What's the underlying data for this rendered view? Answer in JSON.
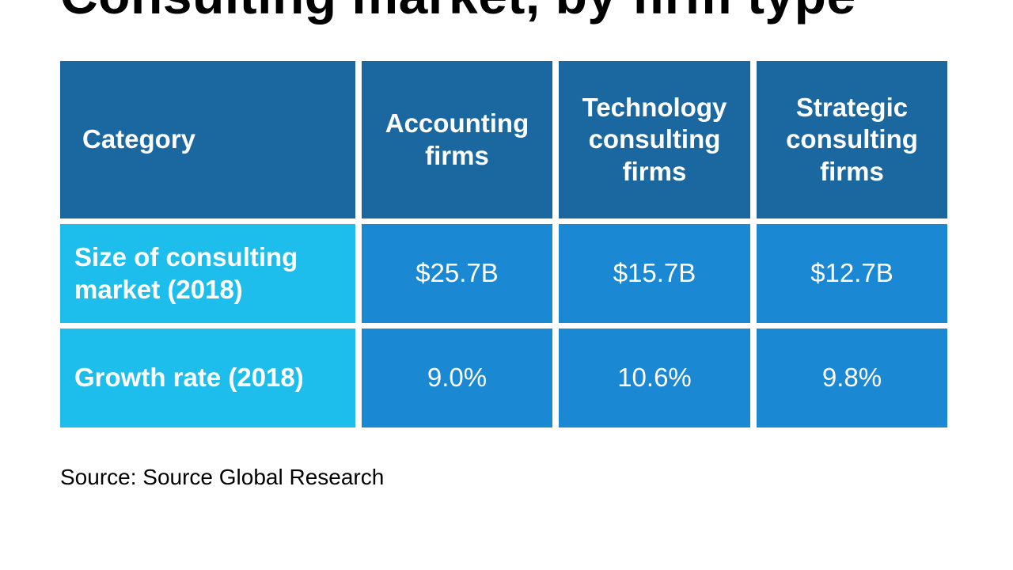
{
  "title": "Consulting market, by firm type",
  "chart_data": {
    "type": "table",
    "columns": [
      "Category",
      "Accounting firms",
      "Technology consulting firms",
      "Strategic consulting firms"
    ],
    "rows": [
      {
        "label": "Size of consulting market (2018)",
        "values": [
          "$25.7B",
          "$15.7B",
          "$12.7B"
        ]
      },
      {
        "label": "Growth rate (2018)",
        "values": [
          "9.0%",
          "10.6%",
          "9.8%"
        ]
      }
    ],
    "colors": {
      "header": "#1b68a0",
      "row_label": "#1dbeeb",
      "value_cell": "#1b88d3"
    }
  },
  "source": "Source: Source Global Research"
}
